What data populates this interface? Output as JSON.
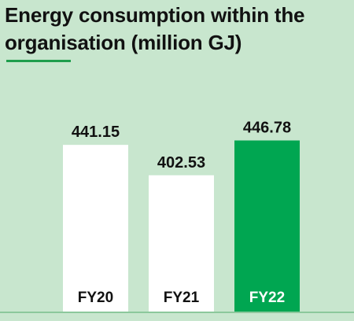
{
  "title": "Energy consumption within the organisation (million GJ)",
  "colors": {
    "background": "#c8e6ce",
    "accent": "#00a651",
    "bar_default": "#ffffff",
    "title_text": "#111111",
    "label_text": "#111111",
    "highlight_label_text": "#ffffff",
    "baseline": "#8cc89c"
  },
  "chart_data": {
    "type": "bar",
    "title": "Energy consumption within the organisation (million GJ)",
    "categories": [
      "FY20",
      "FY21",
      "FY22"
    ],
    "values": [
      441.15,
      402.53,
      446.78
    ],
    "data_labels": [
      "441.15",
      "402.53",
      "446.78"
    ],
    "highlight_category": "FY22",
    "xlabel": "",
    "ylabel": "",
    "grid": false,
    "legend": "none"
  }
}
